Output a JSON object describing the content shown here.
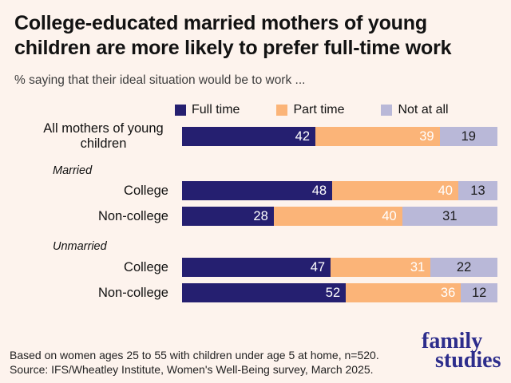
{
  "colors": {
    "background": "#fdf3ed",
    "title_text": "#121212",
    "subtitle_text": "#3d3d3d",
    "footer_text": "#222222",
    "logo": "#2d2d8c"
  },
  "chart_data": {
    "type": "bar",
    "variant": "horizontal-stacked",
    "title": "College-educated married mothers of young children are more likely to prefer full-time work",
    "subtitle": "% saying that their ideal situation would be to work ...",
    "xlim": [
      0,
      100
    ],
    "grid": false,
    "legend_position": "top",
    "series": [
      {
        "key": "full-time",
        "name": "Full time",
        "color": "#251f70",
        "value_color": "#ffffff",
        "value_align": "right"
      },
      {
        "key": "part-time",
        "name": "Part time",
        "color": "#fbb478",
        "value_color": "#ffffff",
        "value_align": "right"
      },
      {
        "key": "not-at-all",
        "name": "Not at all",
        "color": "#b9b8d8",
        "value_color": "#1c1c1c",
        "value_align": "center"
      }
    ],
    "rows": [
      {
        "label": "All mothers of young children",
        "values": [
          42,
          39,
          19
        ]
      },
      {
        "group": "Married"
      },
      {
        "label": "College",
        "values": [
          48,
          40,
          13
        ]
      },
      {
        "label": "Non-college",
        "values": [
          28,
          40,
          31
        ]
      },
      {
        "group": "Unmarried"
      },
      {
        "label": "College",
        "values": [
          47,
          31,
          22
        ]
      },
      {
        "label": "Non-college",
        "values": [
          52,
          36,
          12
        ]
      }
    ]
  },
  "footer": {
    "note": "Based on women ages 25 to 55 with children under age 5 at home, n=520.",
    "source": "Source: IFS/Wheatley Institute, Women's Well-Being survey, March 2025."
  },
  "logo": {
    "line1": "family",
    "line2": "studies"
  }
}
